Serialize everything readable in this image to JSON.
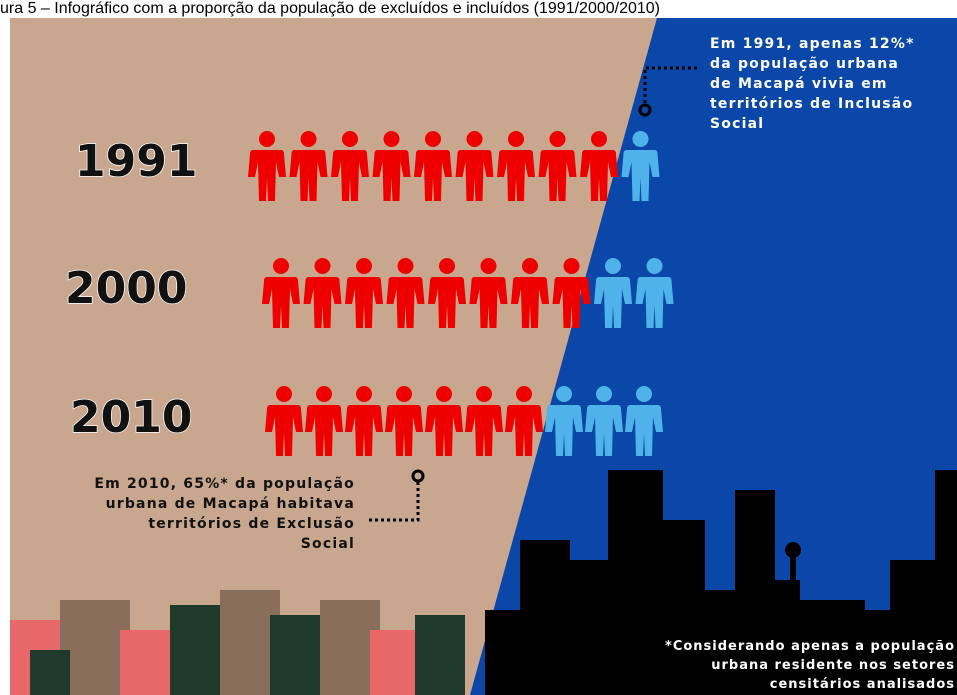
{
  "caption": "ura 5 – Infográfico com a proporção da população de excluídos e incluídos (1991/2000/2010)",
  "rows": [
    {
      "year": "1991",
      "excluded": 9,
      "included": 1
    },
    {
      "year": "2000",
      "excluded": 8,
      "included": 2
    },
    {
      "year": "2010",
      "excluded": 7,
      "included": 3
    }
  ],
  "note_1991": [
    "Em 1991, apenas 12%*",
    "da população urbana",
    "de Macapá vivia em",
    "territórios de Inclusão",
    "Social"
  ],
  "note_2010": [
    "Em 2010, 65%* da população",
    "urbana de Macapá habitava",
    "territórios de Exclusão",
    "Social"
  ],
  "footnote": [
    "*Considerando apenas a população",
    "urbana residente nos setores",
    "censitários analisados"
  ]
}
